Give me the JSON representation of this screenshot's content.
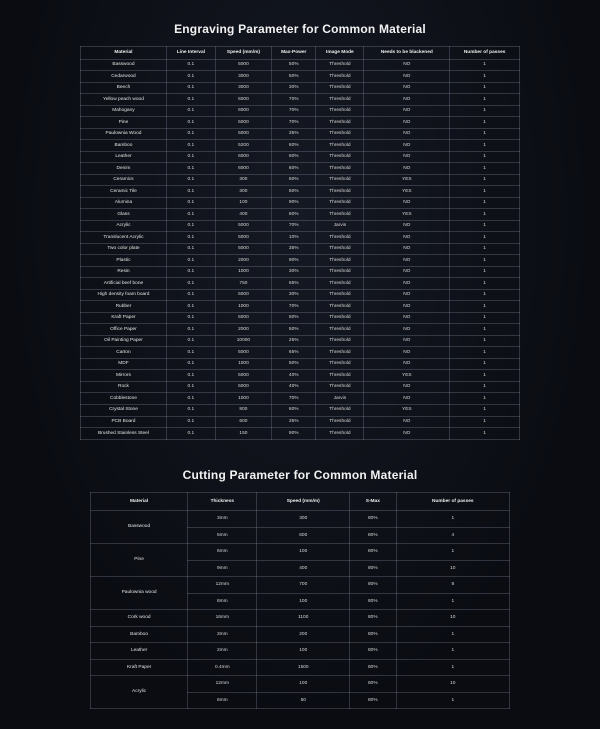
{
  "engraving": {
    "title": "Engraving Parameter for Common Material",
    "columns": [
      "Material",
      "Line Interval",
      "Speed (mm/m)",
      "Max-Power",
      "Image Mode",
      "Needs to be blackened",
      "Number of passes"
    ],
    "rows": [
      [
        "Basswood",
        "0.1",
        "5000",
        "50%",
        "Threshold",
        "NO",
        "1"
      ],
      [
        "Cedarwood",
        "0.1",
        "3000",
        "50%",
        "Threshold",
        "NO",
        "1"
      ],
      [
        "Beech",
        "0.1",
        "3000",
        "30%",
        "Threshold",
        "NO",
        "1"
      ],
      [
        "Yellow peach wood",
        "0.1",
        "6000",
        "70%",
        "Threshold",
        "NO",
        "1"
      ],
      [
        "Mahogany",
        "0.1",
        "6000",
        "70%",
        "Threshold",
        "NO",
        "1"
      ],
      [
        "Pine",
        "0.1",
        "5000",
        "70%",
        "Threshold",
        "NO",
        "1"
      ],
      [
        "Paulownia Wood",
        "0.1",
        "5000",
        "35%",
        "Threshold",
        "NO",
        "1"
      ],
      [
        "Bamboo",
        "0.1",
        "5200",
        "60%",
        "Threshold",
        "NO",
        "1"
      ],
      [
        "Leather",
        "0.1",
        "6000",
        "60%",
        "Threshold",
        "NO",
        "1"
      ],
      [
        "Denim",
        "0.1",
        "6000",
        "60%",
        "Threshold",
        "NO",
        "1"
      ],
      [
        "Ceramics",
        "0.1",
        "300",
        "60%",
        "Threshold",
        "YES",
        "1"
      ],
      [
        "Ceramic Tile",
        "0.1",
        "300",
        "60%",
        "Threshold",
        "YES",
        "1"
      ],
      [
        "Alumina",
        "0.1",
        "100",
        "90%",
        "Threshold",
        "NO",
        "1"
      ],
      [
        "Glass",
        "0.1",
        "400",
        "60%",
        "Threshold",
        "YES",
        "1"
      ],
      [
        "Acrylic",
        "0.1",
        "5000",
        "70%",
        "Jarvis",
        "NO",
        "1"
      ],
      [
        "Translucent Acrylic",
        "0.1",
        "5000",
        "10%",
        "Threshold",
        "NO",
        "1"
      ],
      [
        "Two color plate",
        "0.1",
        "5000",
        "35%",
        "Threshold",
        "NO",
        "1"
      ],
      [
        "Plastic",
        "0.1",
        "2000",
        "90%",
        "Threshold",
        "NO",
        "1"
      ],
      [
        "Resin",
        "0.1",
        "1000",
        "30%",
        "Threshold",
        "NO",
        "1"
      ],
      [
        "Artificial beef bone",
        "0.1",
        "750",
        "65%",
        "Threshold",
        "NO",
        "1"
      ],
      [
        "High density foam board",
        "0.1",
        "5000",
        "30%",
        "Threshold",
        "NO",
        "1"
      ],
      [
        "Rubber",
        "0.1",
        "1000",
        "70%",
        "Threshold",
        "NO",
        "1"
      ],
      [
        "Kraft Paper",
        "0.1",
        "6000",
        "50%",
        "Threshold",
        "NO",
        "1"
      ],
      [
        "Office Paper",
        "0.1",
        "2000",
        "50%",
        "Threshold",
        "NO",
        "1"
      ],
      [
        "Oil Painting Paper",
        "0.1",
        "10000",
        "25%",
        "Threshold",
        "NO",
        "1"
      ],
      [
        "Carton",
        "0.1",
        "5000",
        "65%",
        "Threshold",
        "NO",
        "1"
      ],
      [
        "MDF",
        "0.1",
        "1000",
        "50%",
        "Threshold",
        "NO",
        "1"
      ],
      [
        "Mirrors",
        "0.1",
        "5000",
        "40%",
        "Threshold",
        "YES",
        "1"
      ],
      [
        "Rock",
        "0.1",
        "5000",
        "40%",
        "Threshold",
        "NO",
        "1"
      ],
      [
        "Cobblestone",
        "0.1",
        "1000",
        "70%",
        "Jarvis",
        "NO",
        "1"
      ],
      [
        "Crystal Stone",
        "0.1",
        "800",
        "60%",
        "Threshold",
        "YES",
        "1"
      ],
      [
        "PCB Board",
        "0.1",
        "600",
        "35%",
        "Threshold",
        "NO",
        "1"
      ],
      [
        "Brushed Stainless Steel",
        "0.1",
        "150",
        "90%",
        "Threshold",
        "NO",
        "1"
      ]
    ]
  },
  "cutting": {
    "title": "Cutting Parameter for Common Material",
    "columns": [
      "Material",
      "Thickness",
      "Speed (mm/m)",
      "S-Max",
      "Number of passes"
    ],
    "rows": [
      {
        "material": "Basswood",
        "span": 2,
        "sub": [
          [
            "3mm",
            "300",
            "80%",
            "1"
          ],
          [
            "5mm",
            "600",
            "80%",
            "4"
          ]
        ]
      },
      {
        "material": "Pine",
        "span": 2,
        "sub": [
          [
            "6mm",
            "100",
            "80%",
            "1"
          ],
          [
            "9mm",
            "400",
            "80%",
            "10"
          ]
        ]
      },
      {
        "material": "Paulownia wood",
        "span": 2,
        "sub": [
          [
            "12mm",
            "700",
            "80%",
            "8"
          ],
          [
            "8mm",
            "100",
            "80%",
            "1"
          ]
        ]
      },
      {
        "material": "Cork wood",
        "span": 1,
        "sub": [
          [
            "16mm",
            "1100",
            "80%",
            "10"
          ]
        ]
      },
      {
        "material": "Bamboo",
        "span": 1,
        "sub": [
          [
            "3mm",
            "200",
            "80%",
            "1"
          ]
        ]
      },
      {
        "material": "Leather",
        "span": 1,
        "sub": [
          [
            "2mm",
            "100",
            "80%",
            "1"
          ]
        ]
      },
      {
        "material": "Kraft Paper",
        "span": 1,
        "sub": [
          [
            "0.4mm",
            "1500",
            "80%",
            "1"
          ]
        ]
      },
      {
        "material": "Acrylic",
        "span": 2,
        "sub": [
          [
            "12mm",
            "100",
            "80%",
            "10"
          ],
          [
            "6mm",
            "50",
            "80%",
            "1"
          ]
        ]
      }
    ]
  }
}
